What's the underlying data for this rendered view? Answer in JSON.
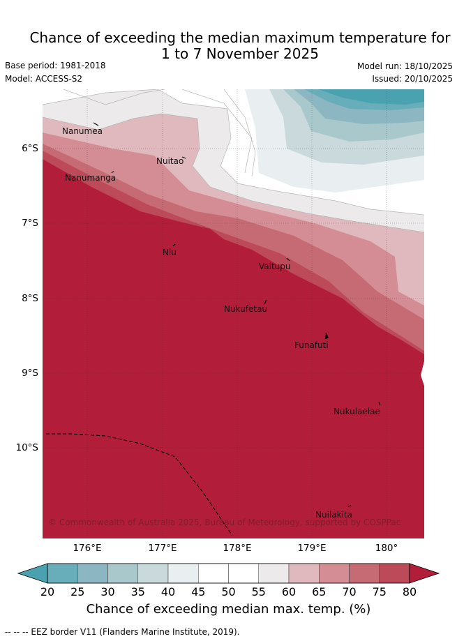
{
  "title_line1": "Chance of exceeding the median maximum temperature for",
  "title_line2": "1 to 7 November 2025",
  "base_period": "Base period: 1981-2018",
  "model": "Model: ACCESS-S2",
  "model_run": "Model run: 18/10/2025",
  "issued": "Issued: 20/10/2025",
  "lat_labels": [
    "6°S",
    "7°S",
    "8°S",
    "9°S",
    "10°S"
  ],
  "lon_labels": [
    "176°E",
    "177°E",
    "178°E",
    "179°E",
    "180°"
  ],
  "places": [
    "Nanumea",
    "Nuitao",
    "Nanumanga",
    "Niu",
    "Vaitupu",
    "Nukufetau",
    "Funafuti",
    "Nukulaelae",
    "Nuilakita"
  ],
  "copyright": "© Commonwealth of Australia 2025, Bureau of Meteorology, supported by COSPPac",
  "colorbar": {
    "ticks": [
      "20",
      "25",
      "30",
      "35",
      "40",
      "45",
      "50",
      "55",
      "60",
      "65",
      "70",
      "75",
      "80"
    ],
    "title": "Chance of exceeding median max. temp. (%)",
    "colors": [
      "#68aeba",
      "#8cb7c2",
      "#a9c8cc",
      "#c9d9dc",
      "#e9eff1",
      "#ffffff",
      "#ffffff",
      "#eceaeb",
      "#e0b9be",
      "#d48d95",
      "#c66a74",
      "#bc4a58"
    ],
    "under_color": "#4aa2b1",
    "over_color": "#b21e39"
  },
  "legend_footer": "-- -- -- EEZ border V11 (Flanders Marine Institute, 2019).",
  "chart_data": {
    "type": "map",
    "region": "Tuvalu",
    "period": "1 to 7 November 2025",
    "variable": "Chance of exceeding median max. temp. (%)",
    "lon_range": [
      175.5,
      180.5
    ],
    "lat_range": [
      -11.2,
      -5.3
    ],
    "levels": [
      20,
      25,
      30,
      35,
      40,
      45,
      50,
      55,
      60,
      65,
      70,
      75,
      80
    ],
    "pattern": "probabilities above 80% over the south-west and most of the domain; decreasing to 20% or below in the north-east corner"
  }
}
